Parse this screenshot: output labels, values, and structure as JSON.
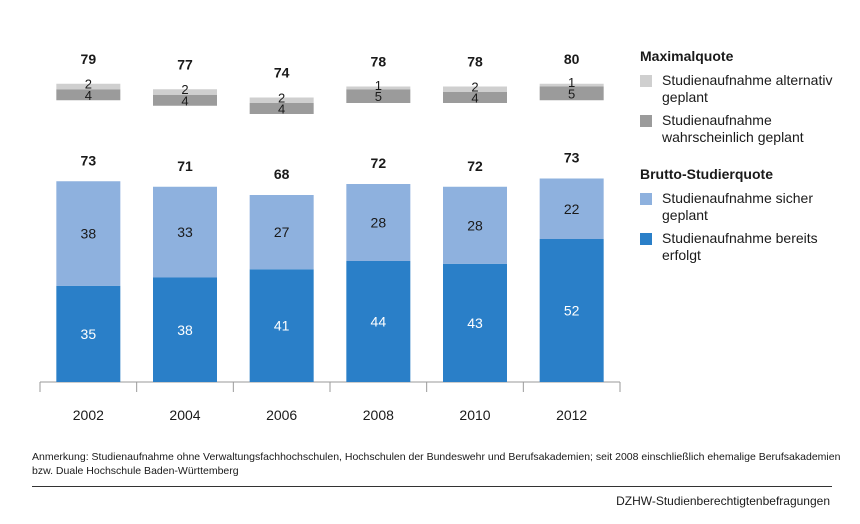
{
  "chart_data": {
    "type": "bar",
    "stacked": true,
    "categories": [
      "2002",
      "2004",
      "2006",
      "2008",
      "2010",
      "2012"
    ],
    "series": [
      {
        "name": "Studienaufnahme bereits erfolgt",
        "group": "Brutto-Studierquote",
        "values": [
          35,
          38,
          41,
          44,
          43,
          52
        ],
        "color": "#2a7fc8"
      },
      {
        "name": "Studienaufnahme sicher geplant",
        "group": "Brutto-Studierquote",
        "values": [
          38,
          33,
          27,
          28,
          28,
          22
        ],
        "color": "#8eb1de"
      },
      {
        "name": "Studienaufnahme wahrscheinlich geplant",
        "group": "Maximalquote",
        "values": [
          4,
          4,
          4,
          5,
          4,
          5
        ],
        "color": "#9b9b9b"
      },
      {
        "name": "Studienaufnahme alternativ geplant",
        "group": "Maximalquote",
        "values": [
          2,
          2,
          2,
          1,
          2,
          1
        ],
        "color": "#cfcfcf"
      }
    ],
    "totals_brutto": [
      73,
      71,
      68,
      72,
      72,
      73
    ],
    "totals_maximal": [
      79,
      77,
      74,
      78,
      78,
      80
    ],
    "axis_break": true,
    "grid": false
  },
  "legend": {
    "groups": [
      {
        "title": "Maximalquote",
        "items": [
          {
            "label": "Studienaufnahme alternativ geplant",
            "color": "#cfcfcf"
          },
          {
            "label": "Studienaufnahme wahrscheinlich geplant",
            "color": "#9b9b9b"
          }
        ]
      },
      {
        "title": "Brutto-Studierquote",
        "items": [
          {
            "label": "Studienaufnahme sicher geplant",
            "color": "#8eb1de"
          },
          {
            "label": "Studienaufnahme bereits erfolgt",
            "color": "#2a7fc8"
          }
        ]
      }
    ]
  },
  "note": "Anmerkung: Studienaufnahme ohne Verwaltungsfachhochschulen, Hochschulen der Bundeswehr und Berufsakademien; seit 2008 einschließlich ehemalige Berufsakademien bzw. Duale Hochschule Baden-Württemberg",
  "source": "DZHW-Studienberechtigtenbefragungen"
}
